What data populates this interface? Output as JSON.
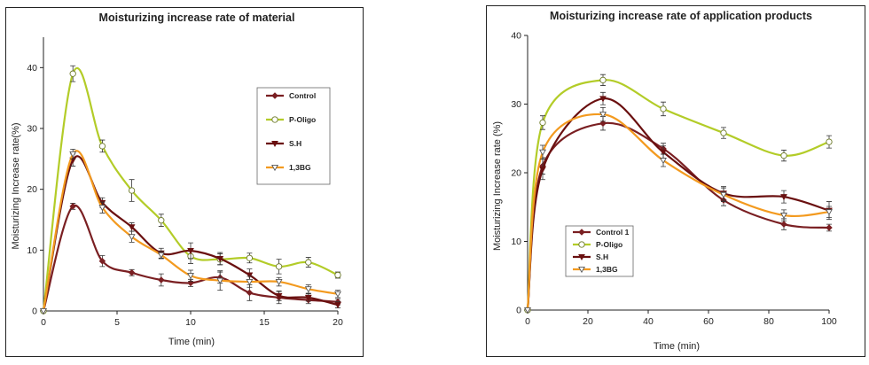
{
  "chart_data": [
    {
      "type": "line",
      "title": "Moisturizing increase rate of material",
      "xlabel": "Time (min)",
      "ylabel": "Moisturizing Increase rate(%)",
      "xlim": [
        0,
        20
      ],
      "ylim": [
        0,
        45
      ],
      "xticks": [
        0,
        5,
        10,
        15,
        20
      ],
      "yticks": [
        0,
        10,
        20,
        30,
        40
      ],
      "grid": false,
      "legend_position": "right",
      "series": [
        {
          "name": "Control",
          "color": "#7a1f22",
          "marker": "diamond",
          "x": [
            0,
            2,
            4,
            6,
            8,
            10,
            12,
            14,
            16,
            18,
            20
          ],
          "y": [
            0,
            17.2,
            8.2,
            6.3,
            5.1,
            4.6,
            5.5,
            3.0,
            2.2,
            1.8,
            1.5
          ],
          "err": [
            0,
            0.5,
            0.9,
            0.5,
            1.0,
            0.6,
            0.9,
            1.3,
            1.0,
            0.6,
            0.5
          ]
        },
        {
          "name": "P-Oligo",
          "color": "#b3cc28",
          "marker": "circle-open",
          "x": [
            0,
            2,
            4,
            6,
            8,
            10,
            12,
            14,
            16,
            18,
            20
          ],
          "y": [
            0,
            39.0,
            27.1,
            19.8,
            14.9,
            9.0,
            8.5,
            8.7,
            7.3,
            8.0,
            5.9
          ],
          "err": [
            0,
            1.3,
            1.0,
            1.8,
            1.0,
            1.2,
            0.9,
            0.8,
            1.2,
            0.8,
            0.5
          ]
        },
        {
          "name": "S.H",
          "color": "#6a1010",
          "marker": "triangle-down",
          "x": [
            0,
            2,
            4,
            6,
            8,
            10,
            12,
            14,
            16,
            18,
            20
          ],
          "y": [
            0,
            24.8,
            17.8,
            13.8,
            9.5,
            9.9,
            8.6,
            5.9,
            2.5,
            2.2,
            1.0
          ],
          "err": [
            0,
            1.0,
            0.8,
            0.7,
            0.8,
            1.3,
            1.0,
            1.0,
            0.8,
            0.6,
            0.5
          ]
        },
        {
          "name": "1,3BG",
          "color": "#f39a1f",
          "marker": "triangle-down-open",
          "x": [
            0,
            2,
            4,
            6,
            8,
            10,
            12,
            14,
            16,
            18,
            20
          ],
          "y": [
            0,
            25.8,
            17.0,
            12.2,
            9.2,
            5.8,
            5.0,
            4.8,
            4.8,
            3.6,
            2.8
          ],
          "err": [
            0,
            0.8,
            0.9,
            0.9,
            0.6,
            0.9,
            1.6,
            0.9,
            0.7,
            0.7,
            0.6
          ]
        }
      ]
    },
    {
      "type": "line",
      "title": "Moisturizing increase rate of application products",
      "xlabel": "Time (min)",
      "ylabel": "Moisturizing Increase rate (%)",
      "xlim": [
        0,
        100
      ],
      "ylim": [
        0,
        40
      ],
      "xticks": [
        0,
        20,
        40,
        60,
        80,
        100
      ],
      "yticks": [
        0,
        10,
        20,
        30,
        40
      ],
      "grid": false,
      "legend_position": "bottom-left",
      "series": [
        {
          "name": "Control 1",
          "color": "#7a1f22",
          "marker": "diamond",
          "x": [
            0,
            5,
            25,
            45,
            65,
            85,
            100
          ],
          "y": [
            0,
            21.0,
            27.2,
            23.5,
            16.0,
            12.5,
            12.0
          ],
          "err": [
            0,
            1.2,
            1.0,
            0.8,
            0.8,
            0.8,
            0.5
          ]
        },
        {
          "name": "P-Oligo",
          "color": "#b3cc28",
          "marker": "circle-open",
          "x": [
            0,
            5,
            25,
            45,
            65,
            85,
            100
          ],
          "y": [
            0,
            27.3,
            33.5,
            29.3,
            25.8,
            22.5,
            24.5
          ],
          "err": [
            0,
            1.0,
            0.8,
            1.0,
            0.8,
            0.8,
            0.9
          ]
        },
        {
          "name": "S.H",
          "color": "#6a1010",
          "marker": "triangle-down",
          "x": [
            0,
            5,
            25,
            45,
            65,
            85,
            100
          ],
          "y": [
            0,
            20.5,
            30.8,
            23.0,
            17.0,
            16.5,
            14.5
          ],
          "err": [
            0,
            1.5,
            0.9,
            0.9,
            1.0,
            0.9,
            1.3
          ]
        },
        {
          "name": "1,3BG",
          "color": "#f39a1f",
          "marker": "triangle-down-open",
          "x": [
            0,
            5,
            25,
            45,
            65,
            85,
            100
          ],
          "y": [
            0,
            23.0,
            28.5,
            21.8,
            16.8,
            13.8,
            14.3
          ],
          "err": [
            0,
            1.0,
            1.0,
            0.9,
            1.0,
            0.8,
            0.8
          ]
        }
      ]
    }
  ]
}
